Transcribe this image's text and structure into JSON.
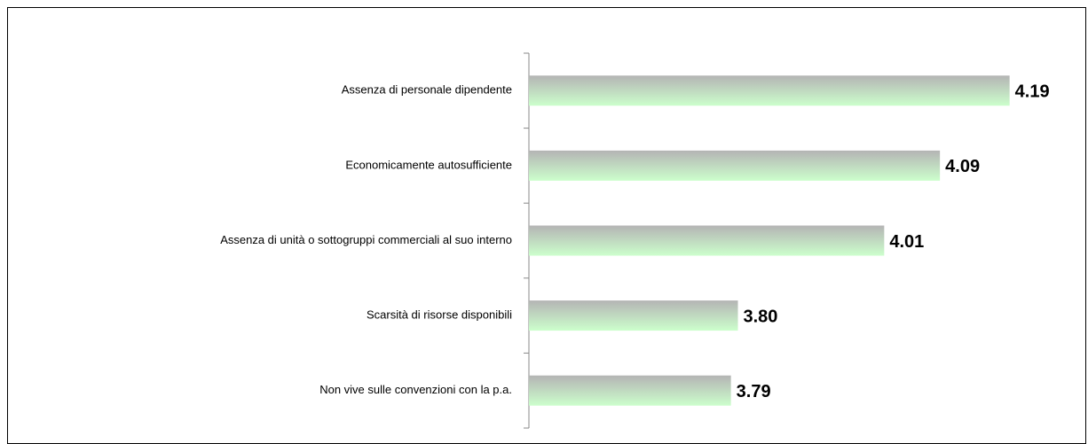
{
  "chart_data": {
    "type": "barh",
    "categories": [
      "Assenza di personale dipendente",
      "Economicamente autosufficiente",
      "Assenza di unità o sottogruppi commerciali al suo interno",
      "Scarsità di risorse disponibili",
      "Non vive sulle convenzioni con la p.a."
    ],
    "values": [
      4.19,
      4.09,
      4.01,
      3.8,
      3.79
    ],
    "value_labels": [
      "4.19",
      "4.09",
      "4.01",
      "3.80",
      "3.79"
    ],
    "xlim": [
      3.5,
      4.3
    ]
  }
}
